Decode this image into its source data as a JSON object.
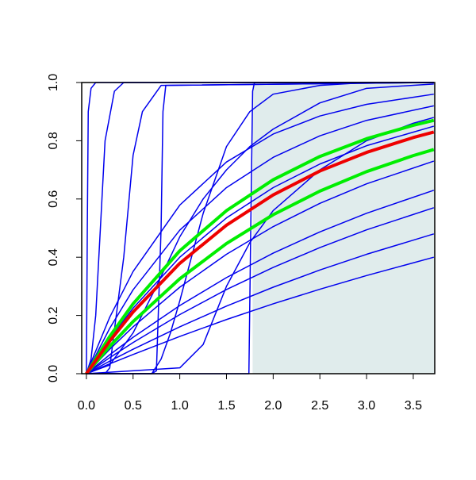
{
  "chart_data": {
    "type": "line",
    "xlim": [
      -0.05,
      3.73
    ],
    "ylim": [
      0,
      1
    ],
    "xticks": [
      {
        "value": 0,
        "label": "0.0"
      },
      {
        "value": 0.5,
        "label": "0.5"
      },
      {
        "value": 1,
        "label": "1.0"
      },
      {
        "value": 1.5,
        "label": "1.5"
      },
      {
        "value": 2,
        "label": "2.0"
      },
      {
        "value": 2.5,
        "label": "2.5"
      },
      {
        "value": 3,
        "label": "3.0"
      },
      {
        "value": 3.5,
        "label": "3.5"
      }
    ],
    "yticks": [
      {
        "value": 0,
        "label": "0.0"
      },
      {
        "value": 0.2,
        "label": "0.2"
      },
      {
        "value": 0.4,
        "label": "0.4"
      },
      {
        "value": 0.6,
        "label": "0.6"
      },
      {
        "value": 0.8,
        "label": "0.8"
      },
      {
        "value": 1,
        "label": "1.0"
      }
    ],
    "shaded_region": {
      "xlim": [
        1.78,
        3.73
      ],
      "color": "#e0ecec"
    },
    "series": [
      {
        "color": "#0000ee",
        "x": [
          0,
          0.01,
          0.02,
          0.05,
          0.1,
          3.72
        ],
        "values": [
          0,
          0.5,
          0.9,
          0.98,
          1,
          1
        ]
      },
      {
        "color": "#0000ee",
        "x": [
          0,
          0.05,
          0.1,
          0.2,
          0.3,
          0.4,
          3.72
        ],
        "values": [
          0,
          0.05,
          0.2,
          0.8,
          0.97,
          1,
          1
        ]
      },
      {
        "color": "#0000ee",
        "x": [
          0,
          0.2,
          0.25,
          0.3,
          0.4,
          0.5,
          0.6,
          0.8,
          3.72
        ],
        "values": [
          0,
          0,
          0.02,
          0.15,
          0.4,
          0.75,
          0.9,
          0.99,
          1
        ]
      },
      {
        "color": "#0000ee",
        "x": [
          0,
          0.7,
          0.75,
          0.8,
          0.82,
          0.85,
          3.72
        ],
        "values": [
          0,
          0,
          0.01,
          0.5,
          0.9,
          0.99,
          1
        ]
      },
      {
        "color": "#0000ee",
        "x": [
          0,
          1.74,
          1.76,
          1.78,
          1.8,
          3.72
        ],
        "values": [
          0,
          0,
          0.5,
          0.97,
          1,
          1
        ]
      },
      {
        "color": "#0000ee",
        "x": [
          0,
          0.25,
          0.5,
          0.75,
          1,
          1.25,
          1.5,
          1.75,
          2,
          2.5,
          3,
          3.72
        ],
        "values": [
          0,
          0.03,
          0.14,
          0.3,
          0.47,
          0.6,
          0.7,
          0.78,
          0.84,
          0.93,
          0.98,
          0.995
        ]
      },
      {
        "color": "#0000ee",
        "x": [
          0,
          0.7,
          0.8,
          0.9,
          1,
          1.25,
          1.5,
          1.75,
          2,
          2.5,
          3,
          3.72
        ],
        "values": [
          0,
          0,
          0.05,
          0.14,
          0.25,
          0.55,
          0.78,
          0.9,
          0.96,
          0.99,
          1,
          1
        ]
      },
      {
        "color": "#0000ee",
        "x": [
          0,
          1,
          1.25,
          1.5,
          1.75,
          2,
          2.5,
          3,
          3.5,
          3.72
        ],
        "values": [
          0,
          0.02,
          0.1,
          0.3,
          0.45,
          0.56,
          0.7,
          0.8,
          0.86,
          0.88
        ]
      },
      {
        "color": "#0000ee",
        "x": [
          0,
          0.25,
          0.5,
          1,
          1.5,
          2,
          2.5,
          3,
          3.72
        ],
        "values": [
          0,
          0.194,
          0.351,
          0.579,
          0.727,
          0.823,
          0.885,
          0.925,
          0.96
        ]
      },
      {
        "color": "#0000ee",
        "x": [
          0,
          0.25,
          0.5,
          1,
          1.5,
          2,
          2.5,
          3,
          3.72
        ],
        "values": [
          0,
          0.156,
          0.288,
          0.493,
          0.639,
          0.743,
          0.817,
          0.87,
          0.92
        ]
      },
      {
        "color": "#0000ee",
        "x": [
          0,
          0.25,
          0.5,
          1,
          1.5,
          2,
          2.5,
          3,
          3.72
        ],
        "values": [
          0,
          0.12,
          0.225,
          0.4,
          0.535,
          0.639,
          0.72,
          0.783,
          0.85
        ]
      },
      {
        "color": "#0000ee",
        "x": [
          0,
          0.25,
          0.5,
          1,
          1.5,
          2,
          2.5,
          3,
          3.72
        ],
        "values": [
          0,
          0.084,
          0.161,
          0.297,
          0.41,
          0.505,
          0.585,
          0.652,
          0.73
        ]
      },
      {
        "color": "#0000ee",
        "x": [
          0,
          0.25,
          0.5,
          1,
          1.5,
          2,
          2.5,
          3,
          3.72
        ],
        "values": [
          0,
          0.065,
          0.125,
          0.234,
          0.33,
          0.414,
          0.487,
          0.551,
          0.63
        ]
      },
      {
        "color": "#0000ee",
        "x": [
          0,
          0.25,
          0.5,
          1,
          1.5,
          2,
          2.5,
          3,
          3.72
        ],
        "values": [
          0,
          0.055,
          0.107,
          0.203,
          0.289,
          0.365,
          0.433,
          0.494,
          0.57
        ]
      },
      {
        "color": "#0000ee",
        "x": [
          0,
          0.25,
          0.5,
          1,
          1.5,
          2,
          2.5,
          3,
          3.72
        ],
        "values": [
          0,
          0.043,
          0.084,
          0.161,
          0.232,
          0.297,
          0.356,
          0.41,
          0.48
        ]
      },
      {
        "color": "#0000ee",
        "x": [
          0,
          0.25,
          0.5,
          1,
          1.5,
          2,
          2.5,
          3,
          3.72
        ],
        "values": [
          0,
          0.034,
          0.066,
          0.128,
          0.186,
          0.24,
          0.29,
          0.337,
          0.4
        ]
      },
      {
        "color": "#00ee00",
        "x": [
          0,
          0.25,
          0.5,
          1,
          1.5,
          2,
          2.5,
          3,
          3.5,
          3.72
        ],
        "values": [
          0,
          0.128,
          0.24,
          0.422,
          0.56,
          0.666,
          0.746,
          0.807,
          0.853,
          0.87
        ]
      },
      {
        "color": "#00ee00",
        "x": [
          0,
          0.25,
          0.5,
          1,
          1.5,
          2,
          2.5,
          3,
          3.5,
          3.72
        ],
        "values": [
          0,
          0.094,
          0.179,
          0.326,
          0.447,
          0.546,
          0.627,
          0.694,
          0.749,
          0.77
        ]
      },
      {
        "color": "#ee0000",
        "x": [
          0,
          0.25,
          0.5,
          1,
          1.5,
          2,
          2.5,
          3,
          3.5,
          3.72
        ],
        "values": [
          0,
          0.112,
          0.212,
          0.379,
          0.51,
          0.614,
          0.696,
          0.76,
          0.811,
          0.83
        ]
      }
    ]
  }
}
